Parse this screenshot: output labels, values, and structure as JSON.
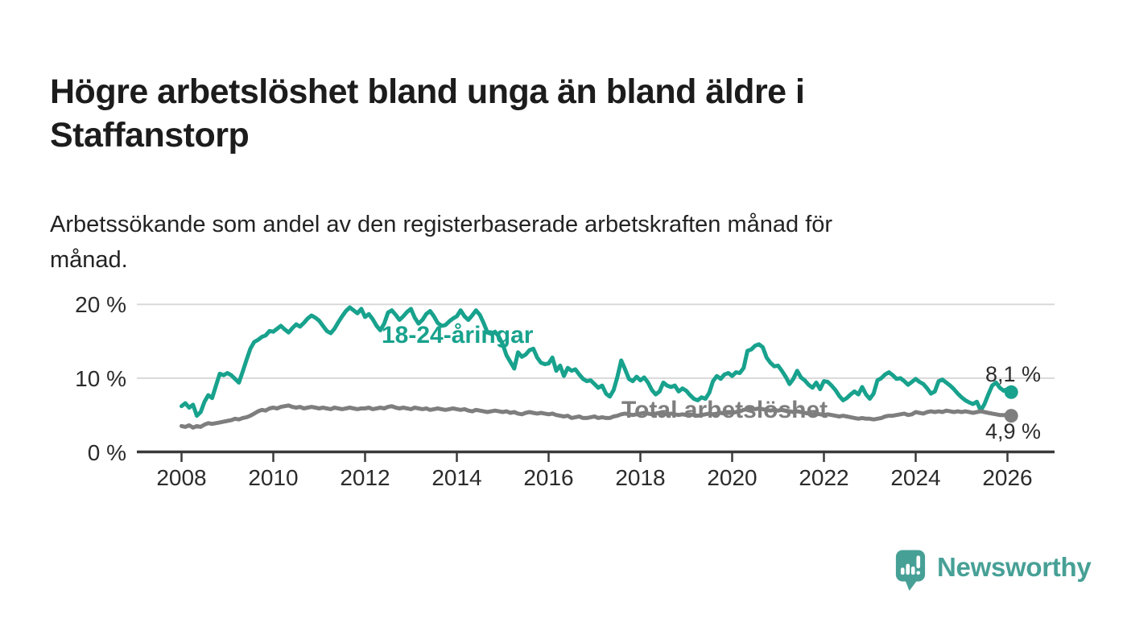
{
  "header": {
    "title": "Högre arbetslöshet bland unga än bland äldre i\nStaffanstorp",
    "subtitle": "Arbetssökande som andel av den registerbaserade arbetskraften månad för\nmånad."
  },
  "colors": {
    "youth": "#18A28D",
    "total": "#7E7E7E",
    "grid": "#D9D9D9",
    "axis": "#3A3A3A",
    "text_dark": "#1C1C1C",
    "annotation": "#2D2D2D",
    "logo": "#47A096"
  },
  "chart_data": {
    "type": "line",
    "unit": "%",
    "frequency": "monthly",
    "start": "2008-01",
    "end": "2026-02",
    "legend_position": "inline-labels",
    "grid": "horizontal",
    "x_ticks": [
      2008,
      2010,
      2012,
      2014,
      2016,
      2018,
      2020,
      2022,
      2024,
      2026
    ],
    "y_ticks": [
      {
        "value": 0,
        "label": "0 %"
      },
      {
        "value": 10,
        "label": "10 %"
      },
      {
        "value": 20,
        "label": "20 %"
      }
    ],
    "ylim": [
      0,
      22
    ],
    "series": [
      {
        "name": "18-24-åringar",
        "color_key": "youth",
        "end_label": "8,1 %",
        "end_value": 8.1,
        "values": [
          6.2,
          6.6,
          6.0,
          6.4,
          4.9,
          5.4,
          6.8,
          7.7,
          7.3,
          9.0,
          10.6,
          10.4,
          10.7,
          10.4,
          9.9,
          9.4,
          10.9,
          12.5,
          14.0,
          14.9,
          15.2,
          15.6,
          15.8,
          16.4,
          16.3,
          16.7,
          17.1,
          16.6,
          16.2,
          16.8,
          17.3,
          17.0,
          17.5,
          18.1,
          18.5,
          18.2,
          17.8,
          17.1,
          16.4,
          16.1,
          16.7,
          17.6,
          18.4,
          19.1,
          19.6,
          19.2,
          18.8,
          19.4,
          18.3,
          18.7,
          18.0,
          17.1,
          16.5,
          17.4,
          18.9,
          19.2,
          18.6,
          17.9,
          18.4,
          19.0,
          19.4,
          18.2,
          17.4,
          17.9,
          18.7,
          19.1,
          18.4,
          17.5,
          17.1,
          17.2,
          17.7,
          18.1,
          18.4,
          19.2,
          18.4,
          17.9,
          18.5,
          19.2,
          18.6,
          17.5,
          16.2,
          16.0,
          16.3,
          15.6,
          14.6,
          13.1,
          12.2,
          11.3,
          13.5,
          12.9,
          13.2,
          13.8,
          14.0,
          12.8,
          12.1,
          11.9,
          12.0,
          12.8,
          11.0,
          11.7,
          10.3,
          11.4,
          11.0,
          11.2,
          10.5,
          9.9,
          9.6,
          9.7,
          9.2,
          8.7,
          9.0,
          7.9,
          7.5,
          8.4,
          10.2,
          12.4,
          11.2,
          9.9,
          9.6,
          10.2,
          9.7,
          10.1,
          9.4,
          8.4,
          7.8,
          8.2,
          9.4,
          9.0,
          8.8,
          9.0,
          8.2,
          8.6,
          8.3,
          7.7,
          7.2,
          7.0,
          7.4,
          7.2,
          8.0,
          9.6,
          10.3,
          9.9,
          10.5,
          10.7,
          10.3,
          10.8,
          10.7,
          11.4,
          13.7,
          13.9,
          14.4,
          14.6,
          14.2,
          12.8,
          12.1,
          11.6,
          11.7,
          11.0,
          10.2,
          9.2,
          9.9,
          11.0,
          10.1,
          9.7,
          9.1,
          8.7,
          9.4,
          8.5,
          9.6,
          9.5,
          9.0,
          8.4,
          7.6,
          7.0,
          7.3,
          7.8,
          8.2,
          7.8,
          8.8,
          7.8,
          7.2,
          7.9,
          9.7,
          10.0,
          10.5,
          10.8,
          10.4,
          9.9,
          10.0,
          9.6,
          9.1,
          9.5,
          9.9,
          9.5,
          9.2,
          8.6,
          7.9,
          8.2,
          9.6,
          9.8,
          9.4,
          9.0,
          8.5,
          7.9,
          7.4,
          7.0,
          6.7,
          6.5,
          6.8,
          5.6,
          6.5,
          7.8,
          9.0,
          9.4,
          8.7,
          8.3,
          8.5,
          8.1
        ]
      },
      {
        "name": "Total arbetslöshet",
        "color_key": "total",
        "end_label": "4,9 %",
        "end_value": 4.9,
        "values": [
          3.5,
          3.4,
          3.6,
          3.3,
          3.5,
          3.4,
          3.7,
          3.9,
          3.8,
          3.9,
          4.0,
          4.1,
          4.2,
          4.3,
          4.5,
          4.4,
          4.6,
          4.7,
          4.9,
          5.2,
          5.5,
          5.7,
          5.6,
          5.9,
          6.0,
          5.9,
          6.1,
          6.2,
          6.3,
          6.1,
          6.0,
          6.1,
          5.9,
          6.0,
          6.1,
          6.0,
          5.9,
          6.0,
          5.9,
          5.8,
          6.0,
          5.9,
          5.8,
          5.9,
          6.0,
          5.9,
          5.8,
          5.9,
          5.9,
          6.0,
          5.8,
          5.9,
          6.0,
          5.9,
          6.1,
          6.2,
          6.0,
          5.9,
          6.0,
          5.9,
          5.8,
          6.0,
          5.9,
          5.8,
          5.9,
          5.7,
          5.8,
          5.9,
          5.8,
          5.7,
          5.8,
          5.9,
          5.8,
          5.7,
          5.8,
          5.6,
          5.5,
          5.7,
          5.6,
          5.5,
          5.4,
          5.5,
          5.6,
          5.5,
          5.4,
          5.5,
          5.3,
          5.4,
          5.2,
          5.1,
          5.3,
          5.4,
          5.3,
          5.2,
          5.3,
          5.2,
          5.1,
          5.2,
          5.0,
          4.9,
          4.8,
          4.9,
          4.6,
          4.7,
          4.8,
          4.6,
          4.6,
          4.7,
          4.8,
          4.6,
          4.7,
          4.6,
          4.6,
          4.8,
          4.9,
          5.1,
          5.2,
          5.1,
          5.0,
          5.1,
          5.2,
          5.3,
          5.2,
          5.1,
          5.2,
          5.3,
          5.2,
          5.1,
          5.2,
          5.1,
          5.0,
          5.1,
          5.0,
          5.1,
          5.0,
          4.9,
          5.0,
          5.1,
          5.2,
          5.1,
          5.2,
          5.3,
          5.2,
          5.3,
          5.3,
          5.4,
          5.5,
          5.7,
          5.8,
          5.9,
          5.8,
          5.9,
          5.8,
          5.7,
          5.6,
          5.7,
          5.6,
          5.7,
          5.6,
          5.5,
          5.4,
          5.5,
          5.4,
          5.3,
          5.2,
          5.1,
          5.2,
          5.1,
          5.0,
          5.1,
          5.0,
          4.9,
          4.8,
          4.9,
          4.8,
          4.7,
          4.6,
          4.5,
          4.6,
          4.5,
          4.5,
          4.4,
          4.5,
          4.6,
          4.8,
          4.9,
          4.9,
          5.0,
          5.1,
          5.2,
          5.0,
          5.1,
          5.4,
          5.3,
          5.2,
          5.4,
          5.5,
          5.4,
          5.5,
          5.4,
          5.6,
          5.5,
          5.4,
          5.5,
          5.4,
          5.5,
          5.4,
          5.3,
          5.4,
          5.5,
          5.4,
          5.3,
          5.2,
          5.1,
          5.0,
          5.0,
          5.0,
          4.9
        ]
      }
    ]
  },
  "logo": {
    "name": "Newsworthy"
  }
}
